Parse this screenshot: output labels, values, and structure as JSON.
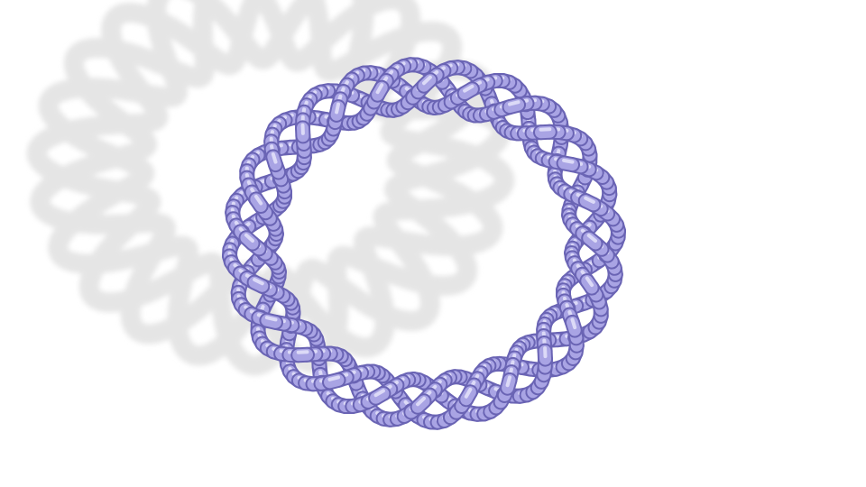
{
  "scene": {
    "background_color": "#ffffff",
    "subject": "twisted-torus-knot",
    "strand_count": 3,
    "twist_count": 8,
    "tube_color": "#a9a4e4",
    "tube_highlight": "#e6e4fb",
    "tube_shadow": "#6a64b4",
    "cast_shadow_color": "#e5e5e5"
  }
}
